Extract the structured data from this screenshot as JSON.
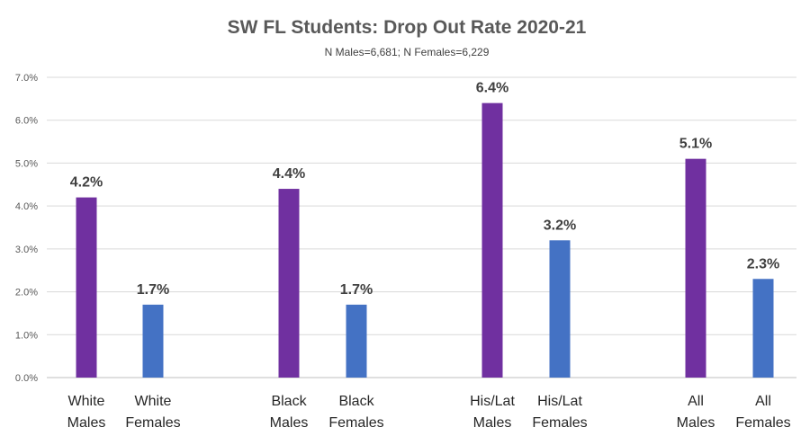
{
  "chart_data": {
    "type": "bar",
    "title": "SW FL Students:  Drop Out Rate 2020-21",
    "subtitle": "N Males=6,681; N Females=6,229",
    "ylim": [
      0,
      7
    ],
    "yticks": [
      "0.0%",
      "1.0%",
      "2.0%",
      "3.0%",
      "4.0%",
      "5.0%",
      "6.0%",
      "7.0%"
    ],
    "grid": true,
    "categories": [
      [
        "White",
        "Males"
      ],
      [
        "White",
        "Females"
      ],
      [
        "Black",
        "Males"
      ],
      [
        "Black",
        "Females"
      ],
      [
        "His/Lat",
        "Males"
      ],
      [
        "His/Lat",
        "Females"
      ],
      [
        "All",
        "Males"
      ],
      [
        "All",
        "Females"
      ]
    ],
    "values": [
      4.2,
      1.7,
      4.4,
      1.7,
      6.4,
      3.2,
      5.1,
      2.3
    ],
    "data_labels": [
      "4.2%",
      "1.7%",
      "4.4%",
      "1.7%",
      "6.4%",
      "3.2%",
      "5.1%",
      "2.3%"
    ],
    "colors": [
      "#7030a0",
      "#4472c4",
      "#7030a0",
      "#4472c4",
      "#7030a0",
      "#4472c4",
      "#7030a0",
      "#4472c4"
    ]
  }
}
